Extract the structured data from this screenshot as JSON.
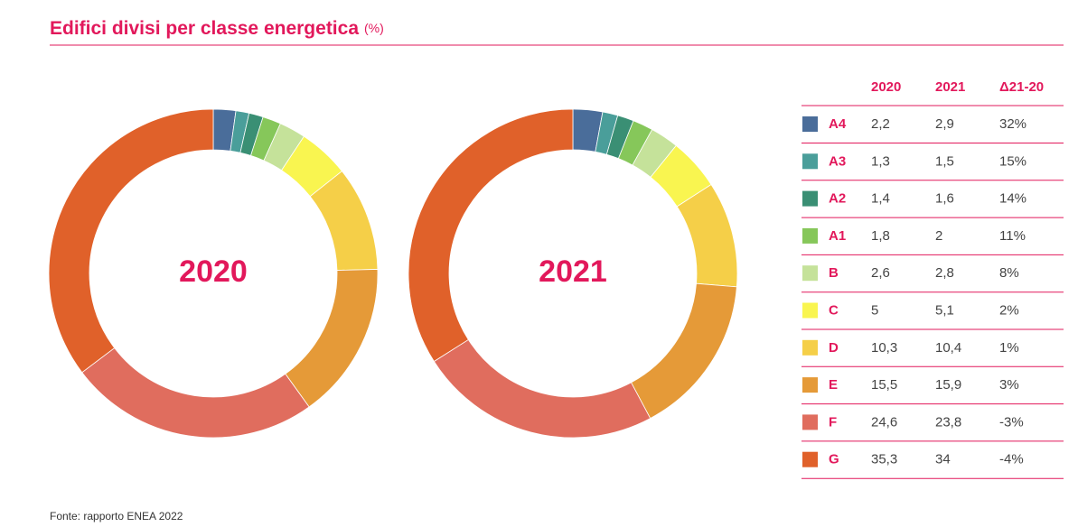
{
  "title": "Edifici divisi per classe energetica",
  "unit": "(%)",
  "source": "Fonte: rapporto ENEA 2022",
  "chart_data": [
    {
      "type": "donut",
      "title": "2020",
      "categories": [
        "A4",
        "A3",
        "A2",
        "A1",
        "B",
        "C",
        "D",
        "E",
        "F",
        "G"
      ],
      "colors": [
        "#4a6d9a",
        "#4a9e9a",
        "#3a8f74",
        "#86c75a",
        "#c5e29a",
        "#f9f550",
        "#f5cf48",
        "#e59a38",
        "#e06d5e",
        "#e0612a"
      ],
      "values": [
        2.2,
        1.3,
        1.4,
        1.8,
        2.6,
        5,
        10.3,
        15.5,
        24.6,
        35.3
      ],
      "value_labels": [
        "2,2",
        "1,3",
        "1,4",
        "1,8",
        "2,6",
        "5",
        "10,3",
        "15,5",
        "24,6",
        "35,3"
      ]
    },
    {
      "type": "donut",
      "title": "2021",
      "categories": [
        "A4",
        "A3",
        "A2",
        "A1",
        "B",
        "C",
        "D",
        "E",
        "F",
        "G"
      ],
      "colors": [
        "#4a6d9a",
        "#4a9e9a",
        "#3a8f74",
        "#86c75a",
        "#c5e29a",
        "#f9f550",
        "#f5cf48",
        "#e59a38",
        "#e06d5e",
        "#e0612a"
      ],
      "values": [
        2.9,
        1.5,
        1.6,
        2,
        2.8,
        5.1,
        10.4,
        15.9,
        23.8,
        34
      ],
      "value_labels": [
        "2,9",
        "1,5",
        "1,6",
        "2",
        "2,8",
        "5,1",
        "10,4",
        "15,9",
        "23,8",
        "34"
      ]
    }
  ],
  "table": {
    "delta_header": "Δ21-20",
    "delta": [
      "32%",
      "15%",
      "14%",
      "11%",
      "8%",
      "2%",
      "1%",
      "3%",
      "-3%",
      "-4%"
    ]
  }
}
